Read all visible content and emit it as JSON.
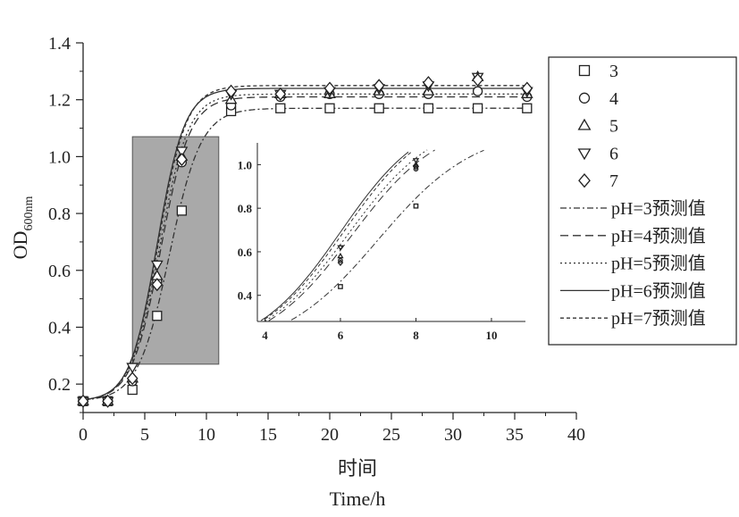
{
  "chart_data": {
    "type": "scatter",
    "xlabel_cn": "时间",
    "xlabel": "Time/h",
    "ylabel": "OD",
    "ylabel_sub": "600nm",
    "xlim": [
      0,
      40
    ],
    "ylim": [
      0.1,
      1.4
    ],
    "xticks": [
      "0",
      "5",
      "10",
      "15",
      "20",
      "25",
      "30",
      "35",
      "40"
    ],
    "yticks": [
      "0.2",
      "0.4",
      "0.6",
      "0.8",
      "1.0",
      "1.2",
      "1.4"
    ],
    "highlight_region": {
      "x": [
        4,
        11
      ],
      "y": [
        0.27,
        1.07
      ]
    },
    "legend": [
      {
        "label": "3",
        "marker": "square"
      },
      {
        "label": "4",
        "marker": "circle"
      },
      {
        "label": "5",
        "marker": "triangle-up"
      },
      {
        "label": "6",
        "marker": "triangle-down"
      },
      {
        "label": "7",
        "marker": "diamond"
      },
      {
        "label": "pH=3预测值",
        "line": "dashdot"
      },
      {
        "label": "pH=4预测值",
        "line": "dashed"
      },
      {
        "label": "pH=5预测值",
        "line": "dotted"
      },
      {
        "label": "pH=6预测值",
        "line": "solid"
      },
      {
        "label": "pH=7预测值",
        "line": "short-dash"
      }
    ],
    "series": [
      {
        "ph": 3,
        "marker": "square",
        "x": [
          0,
          2,
          4,
          6,
          8,
          12,
          16,
          20,
          24,
          28,
          32,
          36
        ],
        "y": [
          0.14,
          0.14,
          0.18,
          0.44,
          0.81,
          1.16,
          1.17,
          1.17,
          1.17,
          1.17,
          1.17,
          1.17
        ]
      },
      {
        "ph": 4,
        "marker": "circle",
        "x": [
          0,
          2,
          4,
          6,
          8,
          12,
          16,
          20,
          24,
          28,
          32,
          36
        ],
        "y": [
          0.14,
          0.14,
          0.21,
          0.56,
          0.98,
          1.18,
          1.21,
          1.22,
          1.22,
          1.22,
          1.23,
          1.21
        ]
      },
      {
        "ph": 5,
        "marker": "triangle-up",
        "x": [
          0,
          2,
          4,
          6,
          8,
          12,
          16,
          20,
          24,
          28,
          32,
          36
        ],
        "y": [
          0.14,
          0.14,
          0.22,
          0.58,
          1.0,
          1.2,
          1.22,
          1.22,
          1.23,
          1.23,
          1.28,
          1.22
        ]
      },
      {
        "ph": 6,
        "marker": "triangle-down",
        "x": [
          0,
          2,
          4,
          6,
          8,
          12,
          16,
          20,
          24,
          28,
          32,
          36
        ],
        "y": [
          0.14,
          0.14,
          0.26,
          0.62,
          1.02,
          1.22,
          1.22,
          1.23,
          1.24,
          1.25,
          1.28,
          1.23
        ]
      },
      {
        "ph": 7,
        "marker": "diamond",
        "x": [
          0,
          2,
          4,
          6,
          8,
          12,
          16,
          20,
          24,
          28,
          32,
          36
        ],
        "y": [
          0.14,
          0.14,
          0.22,
          0.55,
          0.99,
          1.23,
          1.22,
          1.24,
          1.25,
          1.26,
          1.27,
          1.24
        ]
      }
    ],
    "fits": [
      {
        "ph": 3,
        "line": "dashdot",
        "y0": 0.14,
        "ymax": 1.17,
        "mu": 0.78,
        "tm": 7.0
      },
      {
        "ph": 4,
        "line": "dashed",
        "y0": 0.14,
        "ymax": 1.21,
        "mu": 0.85,
        "tm": 6.3
      },
      {
        "ph": 5,
        "line": "dotted",
        "y0": 0.14,
        "ymax": 1.22,
        "mu": 0.86,
        "tm": 6.2
      },
      {
        "ph": 6,
        "line": "solid",
        "y0": 0.14,
        "ymax": 1.24,
        "mu": 0.9,
        "tm": 6.0
      },
      {
        "ph": 7,
        "line": "short-dash",
        "y0": 0.14,
        "ymax": 1.25,
        "mu": 0.88,
        "tm": 6.1
      }
    ],
    "inset": {
      "xlim": [
        3.8,
        10.9
      ],
      "ylim": [
        0.28,
        1.1
      ],
      "xticks": [
        "4",
        "6",
        "8",
        "10"
      ],
      "yticks": [
        "0.4",
        "0.6",
        "0.8",
        "1.0"
      ]
    }
  }
}
